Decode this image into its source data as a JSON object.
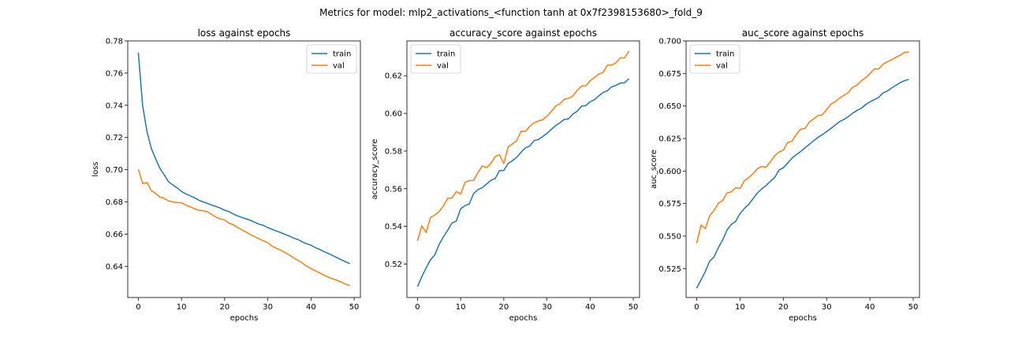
{
  "figure": {
    "suptitle": "Metrics for model: mlp2_activations_<function tanh at 0x7f2398153680>_fold_9"
  },
  "colors": {
    "train": "#1f77b4",
    "val": "#ff7f0e"
  },
  "chart_data": [
    {
      "type": "line",
      "title": "loss against epochs",
      "xlabel": "epochs",
      "ylabel": "loss",
      "xlim": [
        -2.45,
        51.45
      ],
      "ylim": [
        0.6206,
        0.78
      ],
      "xticks": [
        0,
        10,
        20,
        30,
        40,
        50
      ],
      "yticks": [
        0.64,
        0.66,
        0.68,
        0.7,
        0.72,
        0.74,
        0.76,
        0.78
      ],
      "ytick_labels": [
        "0.64",
        "0.66",
        "0.68",
        "0.70",
        "0.72",
        "0.74",
        "0.76",
        "0.78"
      ],
      "legend": "upper right",
      "series": [
        {
          "name": "train",
          "values": [
            0.7727,
            0.7398,
            0.7237,
            0.7133,
            0.7068,
            0.7008,
            0.6968,
            0.6925,
            0.6905,
            0.6887,
            0.6865,
            0.685,
            0.6838,
            0.6826,
            0.6811,
            0.68,
            0.6791,
            0.678,
            0.6771,
            0.6762,
            0.6748,
            0.674,
            0.6725,
            0.6713,
            0.6703,
            0.6695,
            0.6685,
            0.6673,
            0.6661,
            0.6654,
            0.664,
            0.663,
            0.6619,
            0.6609,
            0.6598,
            0.6588,
            0.6575,
            0.6566,
            0.6551,
            0.654,
            0.6531,
            0.6516,
            0.6505,
            0.6491,
            0.648,
            0.6467,
            0.6454,
            0.6441,
            0.6428,
            0.6416
          ]
        },
        {
          "name": "val",
          "values": [
            0.7002,
            0.6914,
            0.692,
            0.6871,
            0.6852,
            0.683,
            0.6822,
            0.6806,
            0.68,
            0.6795,
            0.6795,
            0.678,
            0.677,
            0.6758,
            0.6748,
            0.6745,
            0.6739,
            0.6722,
            0.6705,
            0.6694,
            0.6688,
            0.6668,
            0.6658,
            0.6641,
            0.6626,
            0.6612,
            0.6596,
            0.6583,
            0.657,
            0.6558,
            0.6546,
            0.6525,
            0.6512,
            0.65,
            0.6484,
            0.647,
            0.6451,
            0.6436,
            0.642,
            0.6401,
            0.6386,
            0.6372,
            0.6359,
            0.6345,
            0.6333,
            0.6322,
            0.6313,
            0.6302,
            0.6289,
            0.628
          ]
        }
      ]
    },
    {
      "type": "line",
      "title": "accuracy_score against epochs",
      "xlabel": "epochs",
      "ylabel": "accuracy_score",
      "xlim": [
        -2.45,
        51.45
      ],
      "ylim": [
        0.5022,
        0.6385
      ],
      "xticks": [
        0,
        10,
        20,
        30,
        40,
        50
      ],
      "yticks": [
        0.52,
        0.54,
        0.56,
        0.58,
        0.6,
        0.62
      ],
      "ytick_labels": [
        "0.52",
        "0.54",
        "0.56",
        "0.58",
        "0.60",
        "0.62"
      ],
      "legend": "upper left",
      "series": [
        {
          "name": "train",
          "values": [
            0.508,
            0.5132,
            0.518,
            0.5221,
            0.5248,
            0.5303,
            0.5344,
            0.538,
            0.5418,
            0.5428,
            0.5493,
            0.551,
            0.5519,
            0.5574,
            0.5595,
            0.5605,
            0.5625,
            0.5644,
            0.5654,
            0.5696,
            0.5697,
            0.5734,
            0.5749,
            0.5767,
            0.5794,
            0.5817,
            0.5826,
            0.5855,
            0.5861,
            0.5877,
            0.5894,
            0.5915,
            0.5935,
            0.595,
            0.5968,
            0.5971,
            0.5996,
            0.6012,
            0.6038,
            0.6042,
            0.6062,
            0.6072,
            0.6093,
            0.6111,
            0.6121,
            0.6141,
            0.6149,
            0.6161,
            0.6163,
            0.6184
          ]
        },
        {
          "name": "val",
          "values": [
            0.5323,
            0.5403,
            0.5367,
            0.5447,
            0.546,
            0.5479,
            0.5508,
            0.5549,
            0.5551,
            0.5585,
            0.5572,
            0.5633,
            0.5643,
            0.5644,
            0.5685,
            0.5721,
            0.5712,
            0.5734,
            0.5771,
            0.578,
            0.5733,
            0.5823,
            0.5838,
            0.5856,
            0.5905,
            0.5904,
            0.5931,
            0.595,
            0.596,
            0.5966,
            0.5985,
            0.601,
            0.6039,
            0.6051,
            0.6075,
            0.608,
            0.6093,
            0.6122,
            0.6145,
            0.6146,
            0.6174,
            0.6191,
            0.6209,
            0.6218,
            0.6257,
            0.6257,
            0.6269,
            0.6295,
            0.6295,
            0.6331
          ]
        }
      ]
    },
    {
      "type": "line",
      "title": "auc_score against epochs",
      "xlabel": "epochs",
      "ylabel": "auc_score",
      "xlim": [
        -2.45,
        51.45
      ],
      "ylim": [
        0.5028,
        0.7
      ],
      "xticks": [
        0,
        10,
        20,
        30,
        40,
        50
      ],
      "yticks": [
        0.525,
        0.55,
        0.575,
        0.6,
        0.625,
        0.65,
        0.675,
        0.7
      ],
      "ytick_labels": [
        "0.525",
        "0.550",
        "0.575",
        "0.600",
        "0.625",
        "0.650",
        "0.675",
        "0.700"
      ],
      "legend": "upper left",
      "series": [
        {
          "name": "train",
          "values": [
            0.51,
            0.5164,
            0.5228,
            0.5307,
            0.5339,
            0.5411,
            0.547,
            0.5546,
            0.559,
            0.5613,
            0.5672,
            0.5712,
            0.5743,
            0.5787,
            0.5831,
            0.5862,
            0.5888,
            0.5921,
            0.5949,
            0.6007,
            0.6025,
            0.6061,
            0.6099,
            0.6125,
            0.615,
            0.6178,
            0.6205,
            0.6233,
            0.6258,
            0.6279,
            0.6303,
            0.6328,
            0.6354,
            0.638,
            0.6397,
            0.6418,
            0.6444,
            0.6465,
            0.6482,
            0.651,
            0.6532,
            0.6548,
            0.6565,
            0.6599,
            0.6615,
            0.6638,
            0.6659,
            0.668,
            0.6695,
            0.6704
          ]
        },
        {
          "name": "val",
          "values": [
            0.5445,
            0.5585,
            0.5557,
            0.5657,
            0.5697,
            0.5752,
            0.5774,
            0.5832,
            0.584,
            0.5873,
            0.5865,
            0.5925,
            0.5948,
            0.598,
            0.6018,
            0.6036,
            0.6029,
            0.607,
            0.6117,
            0.6146,
            0.616,
            0.622,
            0.623,
            0.6281,
            0.6322,
            0.6327,
            0.6376,
            0.6401,
            0.6426,
            0.6432,
            0.6473,
            0.6515,
            0.6533,
            0.6561,
            0.6582,
            0.6603,
            0.6644,
            0.666,
            0.6693,
            0.6717,
            0.6748,
            0.6785,
            0.6784,
            0.682,
            0.684,
            0.6855,
            0.6874,
            0.689,
            0.6912,
            0.6915
          ]
        }
      ]
    }
  ]
}
